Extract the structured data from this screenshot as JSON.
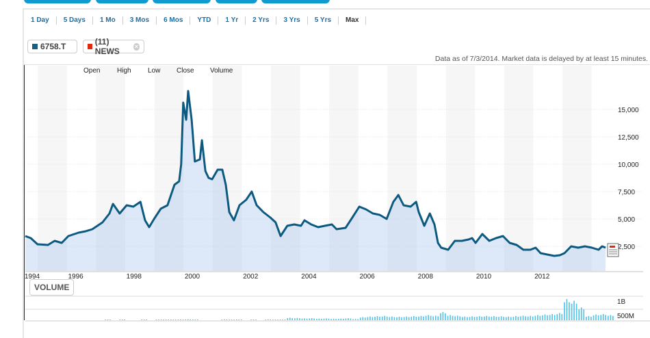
{
  "ranges": [
    "1 Day",
    "5 Days",
    "1 Mo",
    "3 Mos",
    "6 Mos",
    "YTD",
    "1 Yr",
    "2 Yrs",
    "3 Yrs",
    "5 Yrs",
    "Max"
  ],
  "active_range": "Max",
  "legend_chips": {
    "symbol": "6758.T",
    "symbol_color": "#1a5e80",
    "news": "(11) NEWS",
    "news_color": "#e02a10"
  },
  "as_of": "Data as of 7/3/2014. Market data is delayed by at least 15 minutes.",
  "ohlc_labels": [
    "Open",
    "High",
    "Low",
    "Close",
    "Volume"
  ],
  "volume_button": "VOLUME",
  "colors": {
    "line": "#0c5a80",
    "volume": "#4cc3e6",
    "tabs": "#0f9bd0"
  },
  "chart_data": {
    "type": "line",
    "title": "6758.T",
    "xlabel": "",
    "ylabel": "",
    "x_ticks": [
      "1994",
      "1996",
      "1998",
      "2000",
      "2002",
      "2004",
      "2006",
      "2008",
      "2010",
      "2012"
    ],
    "y_ticks": [
      "2,500",
      "5,000",
      "7,500",
      "10,000",
      "12,500",
      "15,000"
    ],
    "y_tick_values": [
      2500,
      5000,
      7500,
      10000,
      12500,
      15000
    ],
    "ylim": [
      0,
      16900
    ],
    "xlim": [
      1994.27,
      2014.4
    ],
    "grid": true,
    "price": [
      [
        1994.27,
        3438
      ],
      [
        1994.46,
        3250
      ],
      [
        1994.69,
        2688
      ],
      [
        1995.05,
        2625
      ],
      [
        1995.28,
        3000
      ],
      [
        1995.52,
        2813
      ],
      [
        1995.75,
        3438
      ],
      [
        1996.1,
        3750
      ],
      [
        1996.34,
        3875
      ],
      [
        1996.57,
        4063
      ],
      [
        1996.92,
        4688
      ],
      [
        1997.16,
        5500
      ],
      [
        1997.28,
        6375
      ],
      [
        1997.51,
        5500
      ],
      [
        1997.75,
        6250
      ],
      [
        1997.98,
        6125
      ],
      [
        1998.22,
        6563
      ],
      [
        1998.38,
        4875
      ],
      [
        1998.52,
        4250
      ],
      [
        1998.69,
        5000
      ],
      [
        1998.92,
        5938
      ],
      [
        1999.15,
        6250
      ],
      [
        1999.39,
        8125
      ],
      [
        1999.55,
        8438
      ],
      [
        1999.62,
        10000
      ],
      [
        1999.69,
        15625
      ],
      [
        1999.79,
        14063
      ],
      [
        1999.86,
        16688
      ],
      [
        1999.98,
        14063
      ],
      [
        2000.09,
        10250
      ],
      [
        2000.26,
        10438
      ],
      [
        2000.33,
        12188
      ],
      [
        2000.45,
        9375
      ],
      [
        2000.56,
        8750
      ],
      [
        2000.68,
        8625
      ],
      [
        2000.87,
        9500
      ],
      [
        2001.03,
        9500
      ],
      [
        2001.15,
        8125
      ],
      [
        2001.27,
        5625
      ],
      [
        2001.43,
        4875
      ],
      [
        2001.62,
        6250
      ],
      [
        2001.85,
        6750
      ],
      [
        2002.04,
        7500
      ],
      [
        2002.21,
        6250
      ],
      [
        2002.44,
        5625
      ],
      [
        2002.68,
        5125
      ],
      [
        2002.86,
        4688
      ],
      [
        2003.03,
        3438
      ],
      [
        2003.26,
        4375
      ],
      [
        2003.5,
        4500
      ],
      [
        2003.73,
        4375
      ],
      [
        2003.85,
        4875
      ],
      [
        2004.08,
        4500
      ],
      [
        2004.32,
        4250
      ],
      [
        2004.55,
        4375
      ],
      [
        2004.79,
        4500
      ],
      [
        2004.95,
        4063
      ],
      [
        2005.26,
        4188
      ],
      [
        2005.49,
        5125
      ],
      [
        2005.73,
        6125
      ],
      [
        2005.96,
        5875
      ],
      [
        2006.2,
        5500
      ],
      [
        2006.43,
        5375
      ],
      [
        2006.67,
        5000
      ],
      [
        2006.9,
        6563
      ],
      [
        2007.07,
        7188
      ],
      [
        2007.25,
        6250
      ],
      [
        2007.49,
        6125
      ],
      [
        2007.68,
        6563
      ],
      [
        2007.77,
        5625
      ],
      [
        2007.96,
        4375
      ],
      [
        2008.15,
        5500
      ],
      [
        2008.31,
        4500
      ],
      [
        2008.43,
        2813
      ],
      [
        2008.54,
        2375
      ],
      [
        2008.78,
        2188
      ],
      [
        2009.01,
        3000
      ],
      [
        2009.25,
        3000
      ],
      [
        2009.48,
        3125
      ],
      [
        2009.6,
        3250
      ],
      [
        2009.72,
        2813
      ],
      [
        2009.95,
        3625
      ],
      [
        2010.19,
        3000
      ],
      [
        2010.42,
        3250
      ],
      [
        2010.66,
        3438
      ],
      [
        2010.89,
        2813
      ],
      [
        2011.13,
        2625
      ],
      [
        2011.36,
        2188
      ],
      [
        2011.6,
        2188
      ],
      [
        2011.78,
        2375
      ],
      [
        2011.95,
        1875
      ],
      [
        2012.18,
        1750
      ],
      [
        2012.42,
        1625
      ],
      [
        2012.61,
        1688
      ],
      [
        2012.77,
        1875
      ],
      [
        2013.0,
        2500
      ],
      [
        2013.24,
        2375
      ],
      [
        2013.47,
        2500
      ],
      [
        2013.71,
        2375
      ],
      [
        2013.94,
        2188
      ],
      [
        2014.06,
        2500
      ],
      [
        2014.18,
        2375
      ]
    ],
    "volume_ticks": [
      "1B",
      "500M"
    ],
    "volume_tick_values": [
      1000,
      500
    ],
    "volume_unit": "millions",
    "volume_start": 1997.0,
    "volume_step": 0.25,
    "volume": [
      20,
      0,
      15,
      0,
      0,
      30,
      0,
      20,
      25,
      30,
      40,
      45,
      30,
      0,
      0,
      0,
      40,
      35,
      30,
      0,
      30,
      0,
      40,
      35,
      30,
      120,
      110,
      90,
      100,
      80,
      90,
      70,
      80,
      100,
      60,
      150,
      180,
      200,
      210,
      180,
      170,
      180,
      200,
      210,
      250,
      220,
      400,
      250,
      220,
      180,
      190,
      200,
      210,
      200,
      190,
      180,
      200,
      220,
      210,
      250,
      280,
      300,
      350,
      1030,
      950,
      620,
      200,
      280,
      300,
      250
    ]
  }
}
